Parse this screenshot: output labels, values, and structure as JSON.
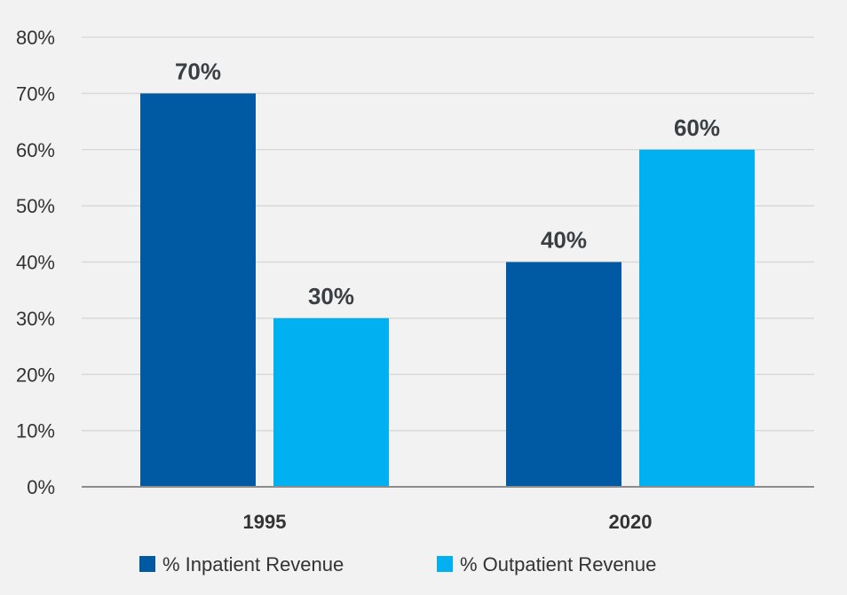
{
  "colors": {
    "background": "#f2f2f2",
    "gridline": "#d9d9d9",
    "axis": "#8c8c8c",
    "text": "#333333",
    "series_inpatient": "#0059a3",
    "series_outpatient": "#00b0f0"
  },
  "chart_data": {
    "type": "bar",
    "title": "",
    "xlabel": "",
    "ylabel": "",
    "categories": [
      "1995",
      "2020"
    ],
    "series": [
      {
        "name": "% Inpatient Revenue",
        "values": [
          70,
          40
        ],
        "labels": [
          "70%",
          "40%"
        ]
      },
      {
        "name": "% Outpatient Revenue",
        "values": [
          30,
          60
        ],
        "labels": [
          "30%",
          "60%"
        ]
      }
    ],
    "ylim": [
      0,
      80
    ],
    "yticks": [
      0,
      10,
      20,
      30,
      40,
      50,
      60,
      70,
      80
    ],
    "ytick_labels": [
      "0%",
      "10%",
      "20%",
      "30%",
      "40%",
      "50%",
      "60%",
      "70%",
      "80%"
    ],
    "grid": true,
    "legend_position": "bottom-center"
  }
}
